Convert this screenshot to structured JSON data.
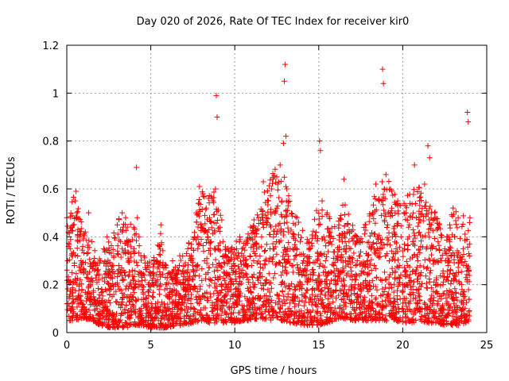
{
  "chart_data": {
    "type": "scatter",
    "title": "Day 020 of 2026, Rate Of TEC Index for receiver kir0",
    "xlabel": "GPS time / hours",
    "ylabel": "ROTI / TECUs",
    "xlim": [
      0,
      25
    ],
    "ylim": [
      0,
      1.2
    ],
    "xticks": [
      0,
      5,
      10,
      15,
      20,
      25
    ],
    "xtick_labels": [
      "0",
      "5",
      "10",
      "15",
      "20",
      "25"
    ],
    "yticks": [
      0,
      0.2,
      0.4,
      0.6,
      0.8,
      1.0,
      1.2
    ],
    "ytick_labels": [
      "0",
      "0.2",
      "0.4",
      "0.6",
      "0.8",
      "1",
      "1.2"
    ],
    "grid": true,
    "marker": "+",
    "color": "#ff0000",
    "series": [
      {
        "points": [
          [
            0.0,
            0.48
          ],
          [
            0.05,
            0.3
          ],
          [
            0.1,
            0.22
          ],
          [
            0.15,
            0.15
          ],
          [
            0.2,
            0.35
          ],
          [
            0.25,
            0.1
          ],
          [
            0.3,
            0.25
          ],
          [
            0.35,
            0.18
          ],
          [
            0.4,
            0.45
          ],
          [
            0.45,
            0.28
          ],
          [
            0.5,
            0.55
          ],
          [
            0.55,
            0.59
          ],
          [
            0.6,
            0.5
          ],
          [
            0.65,
            0.32
          ],
          [
            0.7,
            0.12
          ],
          [
            0.75,
            0.4
          ],
          [
            0.8,
            0.22
          ],
          [
            0.85,
            0.3
          ],
          [
            0.9,
            0.18
          ],
          [
            0.95,
            0.36
          ],
          [
            1.0,
            0.25
          ],
          [
            1.1,
            0.42
          ],
          [
            1.2,
            0.33
          ],
          [
            1.3,
            0.5
          ],
          [
            1.4,
            0.2
          ],
          [
            1.5,
            0.38
          ],
          [
            1.6,
            0.15
          ],
          [
            1.7,
            0.28
          ],
          [
            1.8,
            0.1
          ],
          [
            1.9,
            0.22
          ],
          [
            2.0,
            0.3
          ],
          [
            2.1,
            0.12
          ],
          [
            2.2,
            0.35
          ],
          [
            2.3,
            0.18
          ],
          [
            2.4,
            0.4
          ],
          [
            2.5,
            0.08
          ],
          [
            2.6,
            0.25
          ],
          [
            2.7,
            0.15
          ],
          [
            2.8,
            0.32
          ],
          [
            2.9,
            0.2
          ],
          [
            3.0,
            0.45
          ],
          [
            3.1,
            0.28
          ],
          [
            3.2,
            0.38
          ],
          [
            3.3,
            0.5
          ],
          [
            3.4,
            0.22
          ],
          [
            3.5,
            0.48
          ],
          [
            3.6,
            0.15
          ],
          [
            3.7,
            0.3
          ],
          [
            3.8,
            0.1
          ],
          [
            3.9,
            0.26
          ],
          [
            4.0,
            0.35
          ],
          [
            4.1,
            0.2
          ],
          [
            4.15,
            0.69
          ],
          [
            4.2,
            0.48
          ],
          [
            4.3,
            0.4
          ],
          [
            4.4,
            0.25
          ],
          [
            4.5,
            0.18
          ],
          [
            4.6,
            0.32
          ],
          [
            4.7,
            0.12
          ],
          [
            4.8,
            0.28
          ],
          [
            4.9,
            0.2
          ],
          [
            5.0,
            0.25
          ],
          [
            5.1,
            0.15
          ],
          [
            5.2,
            0.3
          ],
          [
            5.3,
            0.1
          ],
          [
            5.4,
            0.22
          ],
          [
            5.5,
            0.18
          ],
          [
            5.6,
            0.45
          ],
          [
            5.7,
            0.28
          ],
          [
            5.8,
            0.12
          ],
          [
            5.9,
            0.2
          ],
          [
            6.0,
            0.15
          ],
          [
            6.1,
            0.25
          ],
          [
            6.2,
            0.08
          ],
          [
            6.3,
            0.3
          ],
          [
            6.4,
            0.18
          ],
          [
            6.5,
            0.22
          ],
          [
            6.6,
            0.12
          ],
          [
            6.7,
            0.28
          ],
          [
            6.8,
            0.2
          ],
          [
            6.9,
            0.32
          ],
          [
            7.0,
            0.15
          ],
          [
            7.1,
            0.25
          ],
          [
            7.2,
            0.35
          ],
          [
            7.3,
            0.18
          ],
          [
            7.4,
            0.3
          ],
          [
            7.5,
            0.22
          ],
          [
            7.6,
            0.4
          ],
          [
            7.7,
            0.5
          ],
          [
            7.8,
            0.35
          ],
          [
            7.9,
            0.61
          ],
          [
            8.0,
            0.45
          ],
          [
            8.1,
            0.58
          ],
          [
            8.2,
            0.3
          ],
          [
            8.3,
            0.52
          ],
          [
            8.4,
            0.25
          ],
          [
            8.5,
            0.48
          ],
          [
            8.6,
            0.38
          ],
          [
            8.7,
            0.55
          ],
          [
            8.8,
            0.42
          ],
          [
            8.85,
            0.6
          ],
          [
            8.9,
            0.99
          ],
          [
            8.95,
            0.9
          ],
          [
            9.0,
            0.35
          ],
          [
            9.1,
            0.28
          ],
          [
            9.2,
            0.2
          ],
          [
            9.3,
            0.32
          ],
          [
            9.4,
            0.15
          ],
          [
            9.5,
            0.25
          ],
          [
            9.6,
            0.18
          ],
          [
            9.7,
            0.3
          ],
          [
            9.8,
            0.22
          ],
          [
            9.9,
            0.12
          ],
          [
            10.0,
            0.28
          ],
          [
            10.1,
            0.35
          ],
          [
            10.2,
            0.18
          ],
          [
            10.3,
            0.4
          ],
          [
            10.4,
            0.25
          ],
          [
            10.5,
            0.3
          ],
          [
            10.6,
            0.15
          ],
          [
            10.7,
            0.38
          ],
          [
            10.8,
            0.22
          ],
          [
            10.9,
            0.32
          ],
          [
            11.0,
            0.28
          ],
          [
            11.1,
            0.42
          ],
          [
            11.2,
            0.2
          ],
          [
            11.3,
            0.35
          ],
          [
            11.4,
            0.48
          ],
          [
            11.5,
            0.25
          ],
          [
            11.6,
            0.4
          ],
          [
            11.7,
            0.63
          ],
          [
            11.8,
            0.3
          ],
          [
            11.9,
            0.45
          ],
          [
            12.0,
            0.55
          ],
          [
            12.1,
            0.35
          ],
          [
            12.2,
            0.6
          ],
          [
            12.3,
            0.4
          ],
          [
            12.4,
            0.5
          ],
          [
            12.5,
            0.65
          ],
          [
            12.6,
            0.45
          ],
          [
            12.7,
            0.7
          ],
          [
            12.8,
            0.55
          ],
          [
            12.9,
            0.79
          ],
          [
            12.95,
            1.05
          ],
          [
            13.0,
            1.12
          ],
          [
            13.05,
            0.82
          ],
          [
            13.1,
            0.6
          ],
          [
            13.2,
            0.42
          ],
          [
            13.3,
            0.35
          ],
          [
            13.4,
            0.28
          ],
          [
            13.5,
            0.4
          ],
          [
            13.6,
            0.32
          ],
          [
            13.7,
            0.48
          ],
          [
            13.8,
            0.25
          ],
          [
            13.9,
            0.38
          ],
          [
            14.0,
            0.2
          ],
          [
            14.1,
            0.3
          ],
          [
            14.2,
            0.15
          ],
          [
            14.3,
            0.28
          ],
          [
            14.4,
            0.22
          ],
          [
            14.5,
            0.35
          ],
          [
            14.6,
            0.18
          ],
          [
            14.7,
            0.25
          ],
          [
            14.8,
            0.4
          ],
          [
            14.9,
            0.3
          ],
          [
            15.0,
            0.45
          ],
          [
            15.05,
            0.8
          ],
          [
            15.1,
            0.76
          ],
          [
            15.2,
            0.55
          ],
          [
            15.3,
            0.4
          ],
          [
            15.4,
            0.3
          ],
          [
            15.5,
            0.5
          ],
          [
            15.6,
            0.25
          ],
          [
            15.7,
            0.38
          ],
          [
            15.8,
            0.15
          ],
          [
            15.9,
            0.28
          ],
          [
            16.0,
            0.2
          ],
          [
            16.1,
            0.32
          ],
          [
            16.2,
            0.45
          ],
          [
            16.3,
            0.25
          ],
          [
            16.4,
            0.38
          ],
          [
            16.5,
            0.64
          ],
          [
            16.6,
            0.3
          ],
          [
            16.7,
            0.42
          ],
          [
            16.8,
            0.18
          ],
          [
            16.9,
            0.35
          ],
          [
            17.0,
            0.22
          ],
          [
            17.1,
            0.4
          ],
          [
            17.2,
            0.28
          ],
          [
            17.3,
            0.15
          ],
          [
            17.4,
            0.32
          ],
          [
            17.5,
            0.2
          ],
          [
            17.6,
            0.38
          ],
          [
            17.7,
            0.25
          ],
          [
            17.8,
            0.45
          ],
          [
            17.9,
            0.3
          ],
          [
            18.0,
            0.18
          ],
          [
            18.1,
            0.35
          ],
          [
            18.2,
            0.5
          ],
          [
            18.3,
            0.28
          ],
          [
            18.4,
            0.62
          ],
          [
            18.5,
            0.4
          ],
          [
            18.6,
            0.55
          ],
          [
            18.7,
            0.35
          ],
          [
            18.8,
            1.1
          ],
          [
            18.85,
            1.04
          ],
          [
            18.9,
            0.6
          ],
          [
            19.0,
            0.66
          ],
          [
            19.1,
            0.45
          ],
          [
            19.2,
            0.3
          ],
          [
            19.3,
            0.5
          ],
          [
            19.4,
            0.25
          ],
          [
            19.5,
            0.42
          ],
          [
            19.6,
            0.35
          ],
          [
            19.7,
            0.55
          ],
          [
            19.8,
            0.28
          ],
          [
            19.9,
            0.4
          ],
          [
            20.0,
            0.2
          ],
          [
            20.1,
            0.35
          ],
          [
            20.2,
            0.5
          ],
          [
            20.3,
            0.28
          ],
          [
            20.4,
            0.45
          ],
          [
            20.5,
            0.18
          ],
          [
            20.6,
            0.38
          ],
          [
            20.7,
            0.7
          ],
          [
            20.8,
            0.48
          ],
          [
            20.9,
            0.3
          ],
          [
            21.0,
            0.55
          ],
          [
            21.1,
            0.25
          ],
          [
            21.2,
            0.4
          ],
          [
            21.3,
            0.62
          ],
          [
            21.4,
            0.35
          ],
          [
            21.5,
            0.78
          ],
          [
            21.6,
            0.73
          ],
          [
            21.7,
            0.45
          ],
          [
            21.8,
            0.3
          ],
          [
            21.9,
            0.5
          ],
          [
            22.0,
            0.22
          ],
          [
            22.1,
            0.38
          ],
          [
            22.2,
            0.15
          ],
          [
            22.3,
            0.3
          ],
          [
            22.4,
            0.2
          ],
          [
            22.5,
            0.35
          ],
          [
            22.6,
            0.12
          ],
          [
            22.7,
            0.28
          ],
          [
            22.8,
            0.45
          ],
          [
            22.9,
            0.32
          ],
          [
            23.0,
            0.52
          ],
          [
            23.1,
            0.4
          ],
          [
            23.2,
            0.25
          ],
          [
            23.3,
            0.48
          ],
          [
            23.4,
            0.3
          ],
          [
            23.5,
            0.2
          ],
          [
            23.6,
            0.35
          ],
          [
            23.7,
            0.15
          ],
          [
            23.8,
            0.28
          ],
          [
            23.85,
            0.92
          ],
          [
            23.9,
            0.88
          ],
          [
            24.0,
            0.48
          ]
        ]
      }
    ],
    "envelope": [
      [
        0.0,
        0.48,
        0.05
      ],
      [
        0.5,
        0.59,
        0.05
      ],
      [
        1.0,
        0.42,
        0.06
      ],
      [
        1.5,
        0.38,
        0.05
      ],
      [
        2.0,
        0.3,
        0.03
      ],
      [
        2.5,
        0.4,
        0.02
      ],
      [
        3.0,
        0.5,
        0.02
      ],
      [
        3.5,
        0.48,
        0.02
      ],
      [
        4.0,
        0.48,
        0.03
      ],
      [
        4.5,
        0.32,
        0.03
      ],
      [
        5.0,
        0.3,
        0.02
      ],
      [
        5.5,
        0.45,
        0.02
      ],
      [
        6.0,
        0.25,
        0.02
      ],
      [
        6.5,
        0.3,
        0.03
      ],
      [
        7.0,
        0.35,
        0.03
      ],
      [
        7.5,
        0.4,
        0.04
      ],
      [
        8.0,
        0.61,
        0.05
      ],
      [
        8.5,
        0.58,
        0.04
      ],
      [
        9.0,
        0.6,
        0.04
      ],
      [
        9.5,
        0.35,
        0.04
      ],
      [
        10.0,
        0.38,
        0.04
      ],
      [
        10.5,
        0.4,
        0.05
      ],
      [
        11.0,
        0.45,
        0.05
      ],
      [
        11.5,
        0.55,
        0.06
      ],
      [
        12.0,
        0.63,
        0.05
      ],
      [
        12.5,
        0.7,
        0.06
      ],
      [
        13.0,
        0.65,
        0.04
      ],
      [
        13.5,
        0.5,
        0.04
      ],
      [
        14.0,
        0.45,
        0.03
      ],
      [
        14.5,
        0.4,
        0.03
      ],
      [
        15.0,
        0.55,
        0.03
      ],
      [
        15.5,
        0.5,
        0.04
      ],
      [
        16.0,
        0.48,
        0.05
      ],
      [
        16.5,
        0.55,
        0.06
      ],
      [
        17.0,
        0.45,
        0.05
      ],
      [
        17.5,
        0.4,
        0.05
      ],
      [
        18.0,
        0.5,
        0.05
      ],
      [
        18.5,
        0.62,
        0.05
      ],
      [
        19.0,
        0.66,
        0.05
      ],
      [
        19.5,
        0.58,
        0.05
      ],
      [
        20.0,
        0.55,
        0.04
      ],
      [
        20.5,
        0.6,
        0.04
      ],
      [
        21.0,
        0.62,
        0.05
      ],
      [
        21.5,
        0.55,
        0.04
      ],
      [
        22.0,
        0.5,
        0.04
      ],
      [
        22.5,
        0.4,
        0.03
      ],
      [
        23.0,
        0.52,
        0.03
      ],
      [
        23.5,
        0.5,
        0.03
      ],
      [
        24.0,
        0.48,
        0.05
      ]
    ]
  }
}
